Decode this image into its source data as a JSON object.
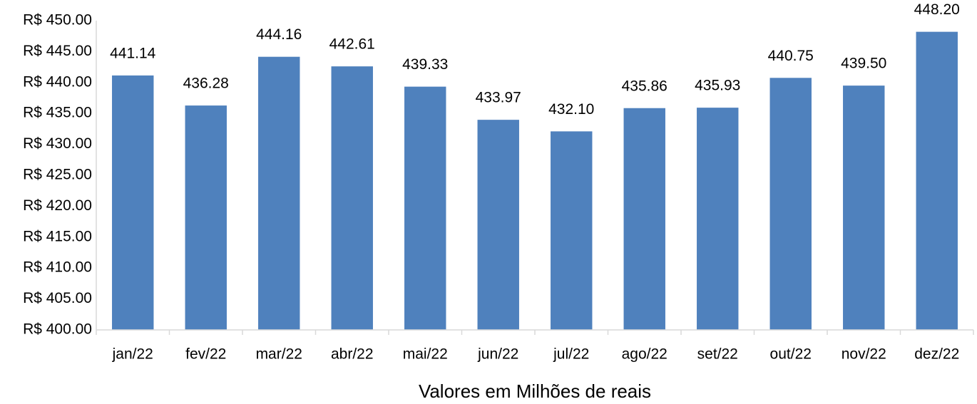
{
  "chart_data": {
    "type": "bar",
    "categories": [
      "jan/22",
      "fev/22",
      "mar/22",
      "abr/22",
      "mai/22",
      "jun/22",
      "jul/22",
      "ago/22",
      "set/22",
      "out/22",
      "nov/22",
      "dez/22"
    ],
    "values": [
      441.14,
      436.28,
      444.16,
      442.61,
      439.33,
      433.97,
      432.1,
      435.86,
      435.93,
      440.75,
      439.5,
      448.2
    ],
    "value_labels": [
      "441.14",
      "436.28",
      "444.16",
      "442.61",
      "439.33",
      "433.97",
      "432.10",
      "435.86",
      "435.93",
      "440.75",
      "439.50",
      "448.20"
    ],
    "color": "#4f81bd",
    "x_label": "Valores em Milhões de reais",
    "ylim": [
      400,
      450
    ],
    "yticks": [
      {
        "value": 400,
        "label": "R$ 400.00"
      },
      {
        "value": 405,
        "label": "R$ 405.00"
      },
      {
        "value": 410,
        "label": "R$ 410.00"
      },
      {
        "value": 415,
        "label": "R$ 415.00"
      },
      {
        "value": 420,
        "label": "R$ 420.00"
      },
      {
        "value": 425,
        "label": "R$ 425.00"
      },
      {
        "value": 430,
        "label": "R$ 430.00"
      },
      {
        "value": 435,
        "label": "R$ 435.00"
      },
      {
        "value": 440,
        "label": "R$ 440.00"
      },
      {
        "value": 445,
        "label": "R$ 445.00"
      },
      {
        "value": 450,
        "label": "R$ 450.00"
      }
    ],
    "grid": false
  }
}
